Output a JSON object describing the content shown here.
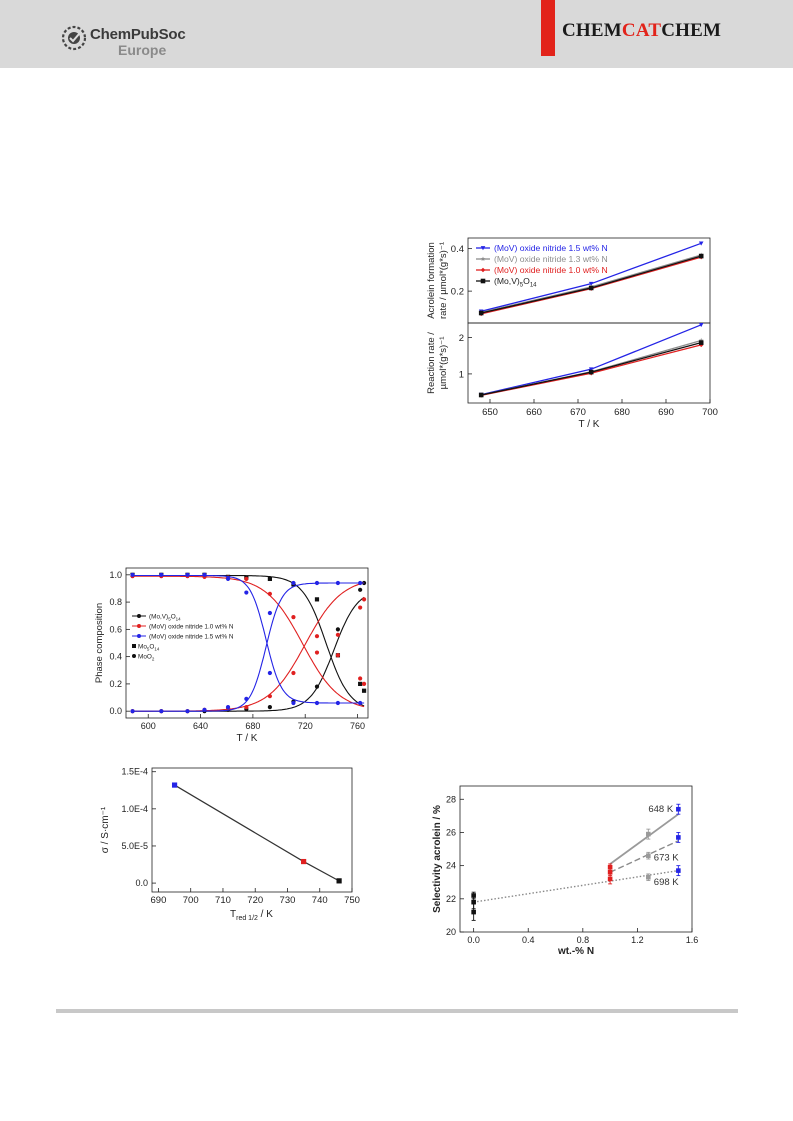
{
  "header": {
    "publisher_name": "ChemPubSoc",
    "publisher_sub": "Europe",
    "journal_part1": "CHEM",
    "journal_part2": "CAT",
    "journal_part3": "CHEM",
    "brand_red": "#e2231a",
    "band_color": "#d9d9d9"
  },
  "chart_data": [
    {
      "id": "rate-chart",
      "type": "line",
      "panels": [
        {
          "ylabel_line1": "Acrolein formation",
          "ylabel_line2": "rate / µmol*(g*s)⁻¹",
          "ylim": [
            0.05,
            0.45
          ],
          "yticks": [
            "0.2",
            "0.4"
          ],
          "ytick_values": [
            0.2,
            0.4
          ],
          "x": [
            648,
            673,
            698
          ],
          "series": [
            {
              "name": "(MoV) oxide nitride 1.5 wt% N",
              "color": "#2424e6",
              "marker": "triangle-down",
              "values": [
                0.105,
                0.235,
                0.425
              ]
            },
            {
              "name": "(MoV) oxide nitride 1.3 wt% N",
              "color": "#8c8c8c",
              "marker": "star",
              "values": [
                0.1,
                0.22,
                0.37
              ]
            },
            {
              "name": "(MoV) oxide nitride 1.0 wt% N",
              "color": "#e02020",
              "marker": "diamond",
              "values": [
                0.093,
                0.212,
                0.36
              ]
            },
            {
              "name_prefix": "(Mo,V)",
              "name_sub1": "5",
              "name_mid": "O",
              "name_sub2": "14",
              "color": "#111111",
              "marker": "square",
              "values": [
                0.097,
                0.215,
                0.365
              ]
            }
          ]
        },
        {
          "ylabel_line1": "Reaction rate /",
          "ylabel_line2": "µmol*(g*s)⁻¹",
          "ylim": [
            0.2,
            2.4
          ],
          "yticks": [
            "1",
            "2"
          ],
          "ytick_values": [
            1,
            2
          ],
          "x": [
            648,
            673,
            698
          ],
          "series": [
            {
              "color": "#2424e6",
              "marker": "triangle-down",
              "values": [
                0.43,
                1.13,
                2.35
              ]
            },
            {
              "color": "#8c8c8c",
              "marker": "star",
              "values": [
                0.42,
                1.06,
                1.92
              ]
            },
            {
              "color": "#e02020",
              "marker": "diamond",
              "values": [
                0.41,
                1.02,
                1.8
              ]
            },
            {
              "color": "#111111",
              "marker": "square",
              "values": [
                0.42,
                1.05,
                1.86
              ]
            }
          ]
        }
      ],
      "xlabel": "T / K",
      "xlim": [
        645,
        700
      ],
      "xticks": [
        "650",
        "660",
        "670",
        "680",
        "690",
        "700"
      ],
      "xtick_values": [
        650,
        660,
        670,
        680,
        690,
        700
      ]
    },
    {
      "id": "phase-chart",
      "type": "line",
      "ylabel": "Phase composition",
      "xlabel": "T / K",
      "xlim": [
        583,
        768
      ],
      "ylim": [
        -0.05,
        1.05
      ],
      "xticks": [
        "600",
        "640",
        "680",
        "720",
        "760"
      ],
      "xtick_values": [
        600,
        640,
        680,
        720,
        760
      ],
      "yticks": [
        "0.0",
        "0.2",
        "0.4",
        "0.6",
        "0.8",
        "1.0"
      ],
      "ytick_values": [
        0,
        0.2,
        0.4,
        0.6,
        0.8,
        1.0
      ],
      "legend": [
        {
          "text_prefix": "(Mo,V)",
          "sub1": "5",
          "text_mid": "O",
          "sub2": "14",
          "color": "#111111",
          "kind": "line-marker"
        },
        {
          "text": "(MoV) oxide nitride 1.0 wt% N",
          "color": "#e02020",
          "kind": "line-marker"
        },
        {
          "text": "(MoV) oxide nitride 1.5 wt% N",
          "color": "#2424e6",
          "kind": "line-marker"
        },
        {
          "text_prefix": "Mo",
          "sub1": "5",
          "text_mid": "O",
          "sub2": "14",
          "color": "#111111",
          "kind": "square"
        },
        {
          "text_prefix": "MoO",
          "sub1": "2",
          "color": "#111111",
          "kind": "circle"
        }
      ],
      "series": [
        {
          "name": "black-decay",
          "color": "#111111",
          "marker": "square",
          "curve": {
            "top": 0.995,
            "mid": 736,
            "width": 9
          },
          "points": [
            [
              588,
              1.0
            ],
            [
              610,
              1.0
            ],
            [
              630,
              1.0
            ],
            [
              643,
              1.0
            ],
            [
              661,
              0.985
            ],
            [
              675,
              0.98
            ],
            [
              693,
              0.97
            ],
            [
              711,
              0.93
            ],
            [
              729,
              0.82
            ],
            [
              745,
              0.41
            ],
            [
              762,
              0.2
            ],
            [
              765,
              0.15
            ]
          ]
        },
        {
          "name": "black-growth",
          "color": "#111111",
          "marker": "circle",
          "curve": {
            "top": 0.9,
            "mid": 742,
            "width": 9,
            "rising": true
          },
          "points": [
            [
              588,
              0.0
            ],
            [
              610,
              0.0
            ],
            [
              630,
              0.0
            ],
            [
              643,
              0.0
            ],
            [
              661,
              0.01
            ],
            [
              675,
              0.015
            ],
            [
              693,
              0.03
            ],
            [
              711,
              0.07
            ],
            [
              729,
              0.18
            ],
            [
              745,
              0.6
            ],
            [
              762,
              0.89
            ],
            [
              765,
              0.94
            ]
          ]
        },
        {
          "name": "red-decay",
          "color": "#e02020",
          "marker": "circle",
          "curve": {
            "top": 0.99,
            "mid": 718,
            "width": 14
          },
          "points": [
            [
              588,
              0.99
            ],
            [
              610,
              0.99
            ],
            [
              630,
              0.99
            ],
            [
              643,
              0.985
            ],
            [
              661,
              0.98
            ],
            [
              675,
              0.97
            ],
            [
              693,
              0.86
            ],
            [
              711,
              0.69
            ],
            [
              729,
              0.55
            ],
            [
              745,
              0.41
            ],
            [
              762,
              0.24
            ],
            [
              765,
              0.2
            ]
          ]
        },
        {
          "name": "red-growth",
          "color": "#e02020",
          "marker": "circle",
          "curve": {
            "top": 0.98,
            "mid": 720,
            "width": 14,
            "rising": true
          },
          "points": [
            [
              588,
              0.0
            ],
            [
              610,
              0.0
            ],
            [
              630,
              0.0
            ],
            [
              643,
              0.01
            ],
            [
              661,
              0.02
            ],
            [
              675,
              0.03
            ],
            [
              693,
              0.11
            ],
            [
              711,
              0.28
            ],
            [
              729,
              0.43
            ],
            [
              745,
              0.56
            ],
            [
              762,
              0.76
            ],
            [
              765,
              0.82
            ]
          ]
        },
        {
          "name": "blue-decay",
          "color": "#2424e6",
          "marker": "circle",
          "curve": {
            "top": 0.995,
            "mid": 690,
            "width": 6,
            "floor": 0.06
          },
          "points": [
            [
              588,
              1.0
            ],
            [
              610,
              1.0
            ],
            [
              630,
              1.0
            ],
            [
              643,
              1.0
            ],
            [
              661,
              0.97
            ],
            [
              675,
              0.87
            ],
            [
              693,
              0.28
            ],
            [
              711,
              0.06
            ],
            [
              729,
              0.06
            ],
            [
              745,
              0.06
            ],
            [
              762,
              0.06
            ]
          ]
        },
        {
          "name": "blue-growth",
          "color": "#2424e6",
          "marker": "circle",
          "curve": {
            "top": 0.94,
            "mid": 690,
            "width": 6,
            "rising": true
          },
          "points": [
            [
              588,
              0.0
            ],
            [
              610,
              0.0
            ],
            [
              630,
              0.0
            ],
            [
              643,
              0.01
            ],
            [
              661,
              0.03
            ],
            [
              675,
              0.09
            ],
            [
              693,
              0.72
            ],
            [
              711,
              0.94
            ],
            [
              729,
              0.94
            ],
            [
              745,
              0.94
            ],
            [
              762,
              0.94
            ]
          ]
        }
      ]
    },
    {
      "id": "conductivity-chart",
      "type": "scatter",
      "ylabel": "σ / S·cm⁻¹",
      "xlabel_main": "T",
      "xlabel_sub": "red 1/2",
      "xlabel_unit": " / K",
      "xlim": [
        688,
        750
      ],
      "ylim": [
        -1.2e-05,
        0.000155
      ],
      "xticks": [
        "690",
        "700",
        "710",
        "720",
        "730",
        "740",
        "750"
      ],
      "xtick_values": [
        690,
        700,
        710,
        720,
        730,
        740,
        750
      ],
      "yticks": [
        "0.0",
        "5.0E-5",
        "1.0E-4",
        "1.5E-4"
      ],
      "ytick_values": [
        0,
        5e-05,
        0.0001,
        0.00015
      ],
      "points": [
        {
          "x": 695,
          "y": 0.000132,
          "color": "#2424e6"
        },
        {
          "x": 735,
          "y": 2.9e-05,
          "color": "#e02020"
        },
        {
          "x": 746,
          "y": 3e-06,
          "color": "#111111"
        }
      ]
    },
    {
      "id": "selectivity-chart",
      "type": "scatter",
      "ylabel": "Selectivity acrolein / %",
      "xlabel": "wt.-% N",
      "xlim": [
        -0.1,
        1.6
      ],
      "ylim": [
        20,
        28.8
      ],
      "xticks": [
        "0.0",
        "0.4",
        "0.8",
        "1.2",
        "1.6"
      ],
      "xtick_values": [
        0,
        0.4,
        0.8,
        1.2,
        1.6
      ],
      "yticks": [
        "20",
        "22",
        "24",
        "26",
        "28"
      ],
      "ytick_values": [
        20,
        22,
        24,
        26,
        28
      ],
      "annotations": [
        {
          "text": "648 K",
          "x": 1.28,
          "y": 27.4
        },
        {
          "text": "673 K",
          "x": 1.32,
          "y": 24.5
        },
        {
          "text": "698 K",
          "x": 1.32,
          "y": 23.0
        }
      ],
      "lines": [
        {
          "style": "solid",
          "color": "#9a9a9a",
          "points": [
            [
              1.0,
              24.1
            ],
            [
              1.5,
              27.1
            ]
          ]
        },
        {
          "style": "dashed",
          "color": "#8a8a8a",
          "points": [
            [
              1.0,
              23.6
            ],
            [
              1.5,
              25.5
            ]
          ]
        },
        {
          "style": "dotted",
          "color": "#8a8a8a",
          "points": [
            [
              0.0,
              21.8
            ],
            [
              1.5,
              23.7
            ]
          ]
        }
      ],
      "points": [
        {
          "x": 0.0,
          "y": 22.2,
          "err": 0.2,
          "color": "#111111"
        },
        {
          "x": 0.0,
          "y": 21.8,
          "err": 0.4,
          "color": "#111111"
        },
        {
          "x": 0.0,
          "y": 21.2,
          "err": 0.5,
          "color": "#111111"
        },
        {
          "x": 1.0,
          "y": 23.9,
          "err": 0.2,
          "color": "#e02020"
        },
        {
          "x": 1.0,
          "y": 23.6,
          "err": 0.2,
          "color": "#e02020"
        },
        {
          "x": 1.0,
          "y": 23.2,
          "err": 0.3,
          "color": "#e02020"
        },
        {
          "x": 1.28,
          "y": 25.9,
          "err": 0.3,
          "color": "#9a9a9a"
        },
        {
          "x": 1.28,
          "y": 24.6,
          "err": 0.2,
          "color": "#9a9a9a"
        },
        {
          "x": 1.28,
          "y": 23.3,
          "err": 0.2,
          "color": "#9a9a9a"
        },
        {
          "x": 1.5,
          "y": 27.4,
          "err": 0.3,
          "color": "#2424e6"
        },
        {
          "x": 1.5,
          "y": 25.7,
          "err": 0.3,
          "color": "#2424e6"
        },
        {
          "x": 1.5,
          "y": 23.7,
          "err": 0.3,
          "color": "#2424e6"
        }
      ]
    }
  ]
}
